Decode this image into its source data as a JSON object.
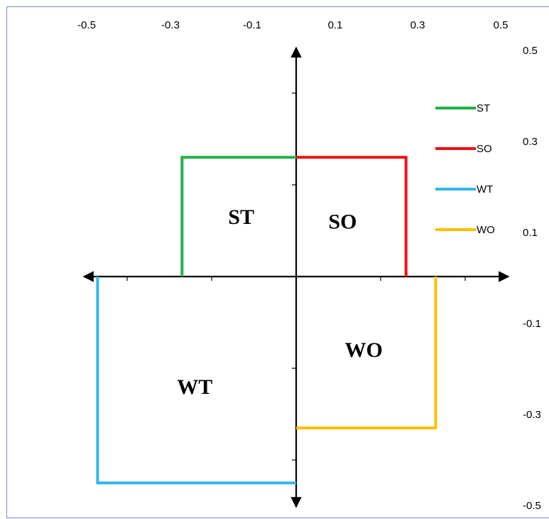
{
  "chart_data": {
    "type": "line",
    "title": "",
    "xlabel": "",
    "ylabel": "",
    "xlim": [
      -0.5,
      0.5
    ],
    "ylim": [
      -0.5,
      0.5
    ],
    "x_tick_labels": [
      "-0.5",
      "-0.3",
      "-0.1",
      "0.1",
      "0.3",
      "0.5"
    ],
    "x_tick_values": [
      -0.5,
      -0.3,
      -0.1,
      0.1,
      0.3,
      0.5
    ],
    "y_tick_labels": [
      "0.5",
      "0.3",
      "0.1",
      "-0.1",
      "-0.3",
      "-0.5"
    ],
    "y_tick_values": [
      0.5,
      0.3,
      0.1,
      -0.1,
      -0.3,
      -0.5
    ],
    "legend_position": "top-right",
    "series": [
      {
        "name": "ST",
        "color": "#22b14c",
        "x": [
          -0.27,
          -0.27,
          0.0
        ],
        "y": [
          0.0,
          0.26,
          0.26
        ]
      },
      {
        "name": "SO",
        "color": "#ee1111",
        "x": [
          0.0,
          0.26,
          0.26
        ],
        "y": [
          0.26,
          0.26,
          0.0
        ]
      },
      {
        "name": "WT",
        "color": "#33b5ee",
        "x": [
          -0.47,
          -0.47,
          0.0
        ],
        "y": [
          0.0,
          -0.45,
          -0.45
        ]
      },
      {
        "name": "WO",
        "color": "#ffc000",
        "x": [
          0.33,
          0.33,
          0.0
        ],
        "y": [
          0.0,
          -0.33,
          -0.33
        ]
      }
    ],
    "quadrant_labels": [
      {
        "text": "ST",
        "x": -0.13,
        "y": 0.13
      },
      {
        "text": "SO",
        "x": 0.11,
        "y": 0.12
      },
      {
        "text": "WT",
        "x": -0.24,
        "y": -0.24
      },
      {
        "text": "WO",
        "x": 0.16,
        "y": -0.16
      }
    ]
  }
}
